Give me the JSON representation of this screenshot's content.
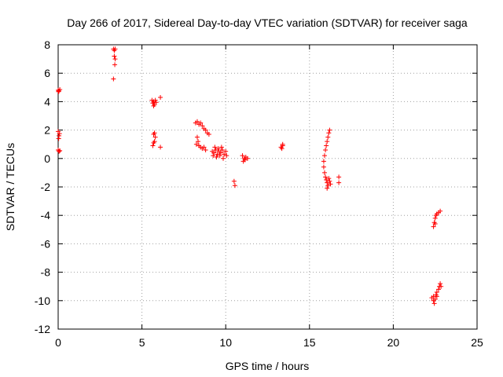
{
  "chart_data": {
    "type": "scatter",
    "title": "Day 266 of 2017, Sidereal Day-to-day VTEC variation (SDTVAR) for receiver saga",
    "xlabel": "GPS time / hours",
    "ylabel": "SDTVAR / TECUs",
    "xlim": [
      0,
      25
    ],
    "ylim": [
      -12,
      8
    ],
    "xticks": [
      0,
      5,
      10,
      15,
      20,
      25
    ],
    "yticks": [
      -12,
      -10,
      -8,
      -6,
      -4,
      -2,
      0,
      2,
      4,
      6,
      8
    ],
    "grid": true,
    "marker": "+",
    "color": "#ff0000",
    "series": [
      {
        "name": "SDTVAR",
        "points": [
          [
            0.0,
            4.8
          ],
          [
            0.05,
            4.75
          ],
          [
            0.1,
            4.85
          ],
          [
            0.02,
            4.7
          ],
          [
            0.0,
            1.9
          ],
          [
            0.05,
            1.6
          ],
          [
            0.03,
            1.4
          ],
          [
            0.08,
            1.75
          ],
          [
            0.0,
            0.6
          ],
          [
            0.05,
            0.5
          ],
          [
            0.1,
            0.55
          ],
          [
            3.3,
            7.7
          ],
          [
            3.35,
            7.6
          ],
          [
            3.4,
            7.7
          ],
          [
            3.35,
            7.2
          ],
          [
            3.4,
            7.0
          ],
          [
            3.38,
            6.6
          ],
          [
            3.3,
            5.6
          ],
          [
            5.6,
            4.1
          ],
          [
            5.65,
            3.9
          ],
          [
            5.7,
            4.0
          ],
          [
            5.75,
            3.8
          ],
          [
            5.8,
            4.1
          ],
          [
            5.7,
            3.7
          ],
          [
            5.85,
            3.95
          ],
          [
            6.1,
            4.3
          ],
          [
            5.7,
            1.7
          ],
          [
            5.75,
            1.8
          ],
          [
            5.8,
            1.5
          ],
          [
            5.7,
            1.1
          ],
          [
            5.65,
            0.9
          ],
          [
            5.75,
            1.2
          ],
          [
            6.1,
            0.8
          ],
          [
            8.2,
            2.5
          ],
          [
            8.3,
            2.6
          ],
          [
            8.4,
            2.4
          ],
          [
            8.5,
            2.5
          ],
          [
            8.6,
            2.3
          ],
          [
            8.7,
            2.1
          ],
          [
            8.8,
            2.0
          ],
          [
            8.9,
            1.8
          ],
          [
            9.0,
            1.7
          ],
          [
            8.3,
            1.5
          ],
          [
            8.35,
            1.2
          ],
          [
            8.25,
            1.0
          ],
          [
            8.4,
            0.9
          ],
          [
            8.5,
            0.8
          ],
          [
            8.6,
            0.7
          ],
          [
            8.7,
            0.8
          ],
          [
            8.8,
            0.6
          ],
          [
            9.2,
            0.5
          ],
          [
            9.3,
            0.4
          ],
          [
            9.4,
            0.6
          ],
          [
            9.5,
            0.3
          ],
          [
            9.6,
            0.5
          ],
          [
            9.7,
            0.4
          ],
          [
            9.8,
            0.6
          ],
          [
            9.9,
            0.3
          ],
          [
            10.0,
            0.5
          ],
          [
            9.25,
            0.2
          ],
          [
            9.45,
            0.1
          ],
          [
            9.65,
            0.2
          ],
          [
            9.85,
            0.0
          ],
          [
            10.05,
            0.2
          ],
          [
            9.55,
            0.7
          ],
          [
            9.75,
            0.8
          ],
          [
            9.35,
            0.8
          ],
          [
            10.5,
            -1.6
          ],
          [
            10.55,
            -1.9
          ],
          [
            11.0,
            0.2
          ],
          [
            11.1,
            0.0
          ],
          [
            11.2,
            0.1
          ],
          [
            11.05,
            -0.2
          ],
          [
            11.15,
            -0.1
          ],
          [
            11.3,
            0.0
          ],
          [
            13.3,
            0.8
          ],
          [
            13.4,
            0.9
          ],
          [
            13.35,
            0.7
          ],
          [
            13.4,
            1.0
          ],
          [
            16.2,
            2.0
          ],
          [
            16.15,
            1.8
          ],
          [
            16.1,
            1.5
          ],
          [
            16.05,
            1.2
          ],
          [
            16.0,
            0.9
          ],
          [
            15.95,
            0.6
          ],
          [
            15.9,
            0.2
          ],
          [
            15.85,
            -0.2
          ],
          [
            15.85,
            -0.6
          ],
          [
            15.9,
            -1.0
          ],
          [
            15.95,
            -1.3
          ],
          [
            16.0,
            -1.5
          ],
          [
            16.05,
            -1.7
          ],
          [
            16.1,
            -1.9
          ],
          [
            16.05,
            -2.1
          ],
          [
            16.2,
            -1.6
          ],
          [
            16.25,
            -1.8
          ],
          [
            16.15,
            -1.4
          ],
          [
            16.75,
            -1.3
          ],
          [
            16.75,
            -1.7
          ],
          [
            22.4,
            -4.8
          ],
          [
            22.45,
            -4.5
          ],
          [
            22.5,
            -4.2
          ],
          [
            22.55,
            -4.0
          ],
          [
            22.6,
            -3.9
          ],
          [
            22.7,
            -3.8
          ],
          [
            22.8,
            -3.7
          ],
          [
            22.5,
            -4.6
          ],
          [
            22.3,
            -9.8
          ],
          [
            22.4,
            -10.0
          ],
          [
            22.45,
            -10.2
          ],
          [
            22.5,
            -9.9
          ],
          [
            22.55,
            -9.6
          ],
          [
            22.6,
            -9.4
          ],
          [
            22.7,
            -9.2
          ],
          [
            22.75,
            -9.0
          ],
          [
            22.8,
            -8.8
          ],
          [
            22.85,
            -9.0
          ],
          [
            22.6,
            -9.7
          ],
          [
            22.4,
            -9.7
          ]
        ]
      }
    ]
  }
}
